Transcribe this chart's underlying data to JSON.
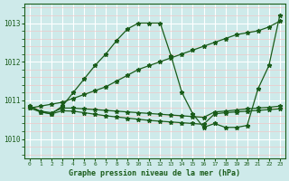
{
  "bg_color": "#ceeaea",
  "grid_color_major": "#ffffff",
  "grid_color_minor": "#f0c8c8",
  "line_color": "#1a5c1a",
  "title": "Graphe pression niveau de la mer (hPa)",
  "xlim": [
    -0.5,
    23.5
  ],
  "ylim": [
    1009.5,
    1013.5
  ],
  "yticks": [
    1010,
    1011,
    1012,
    1013
  ],
  "xticks": [
    0,
    1,
    2,
    3,
    4,
    5,
    6,
    7,
    8,
    9,
    10,
    11,
    12,
    13,
    14,
    15,
    16,
    17,
    18,
    19,
    20,
    21,
    22,
    23
  ],
  "series": [
    {
      "x": [
        0,
        1,
        2,
        3,
        4,
        5,
        6,
        7,
        8,
        9,
        10,
        11,
        12,
        13,
        14,
        15,
        16,
        17,
        18,
        19,
        20,
        21,
        22,
        23
      ],
      "y": [
        1010.8,
        1010.7,
        1010.65,
        1010.85,
        1011.2,
        1011.55,
        1011.9,
        1012.2,
        1012.55,
        1012.85,
        1013.0,
        1013.0,
        1013.0,
        1012.15,
        1011.2,
        1010.65,
        1010.3,
        1010.4,
        1010.3,
        1010.3,
        1010.35,
        1011.3,
        1011.9,
        1013.2
      ]
    },
    {
      "x": [
        0,
        1,
        2,
        3,
        4,
        5,
        6,
        7,
        8,
        9,
        10,
        11,
        12,
        13,
        14,
        15,
        16,
        17,
        18,
        19,
        20,
        21,
        22,
        23
      ],
      "y": [
        1010.8,
        1010.85,
        1010.9,
        1010.95,
        1011.05,
        1011.15,
        1011.25,
        1011.35,
        1011.5,
        1011.65,
        1011.8,
        1011.9,
        1012.0,
        1012.1,
        1012.2,
        1012.3,
        1012.4,
        1012.5,
        1012.6,
        1012.7,
        1012.75,
        1012.8,
        1012.9,
        1013.05
      ]
    },
    {
      "x": [
        0,
        1,
        2,
        3,
        4,
        5,
        6,
        7,
        8,
        9,
        10,
        11,
        12,
        13,
        14,
        15,
        16,
        17,
        18,
        19,
        20,
        21,
        22,
        23
      ],
      "y": [
        1010.85,
        1010.72,
        1010.68,
        1010.8,
        1010.8,
        1010.78,
        1010.76,
        1010.74,
        1010.72,
        1010.7,
        1010.68,
        1010.66,
        1010.64,
        1010.62,
        1010.6,
        1010.58,
        1010.56,
        1010.7,
        1010.72,
        1010.75,
        1010.78,
        1010.8,
        1010.82,
        1010.85
      ]
    },
    {
      "x": [
        0,
        1,
        2,
        3,
        4,
        5,
        6,
        7,
        8,
        9,
        10,
        11,
        12,
        13,
        14,
        15,
        16,
        17,
        18,
        19,
        20,
        21,
        22,
        23
      ],
      "y": [
        1010.85,
        1010.7,
        1010.65,
        1010.73,
        1010.72,
        1010.68,
        1010.64,
        1010.6,
        1010.57,
        1010.54,
        1010.51,
        1010.48,
        1010.46,
        1010.44,
        1010.42,
        1010.4,
        1010.38,
        1010.65,
        1010.68,
        1010.7,
        1010.72,
        1010.74,
        1010.76,
        1010.78
      ]
    }
  ]
}
